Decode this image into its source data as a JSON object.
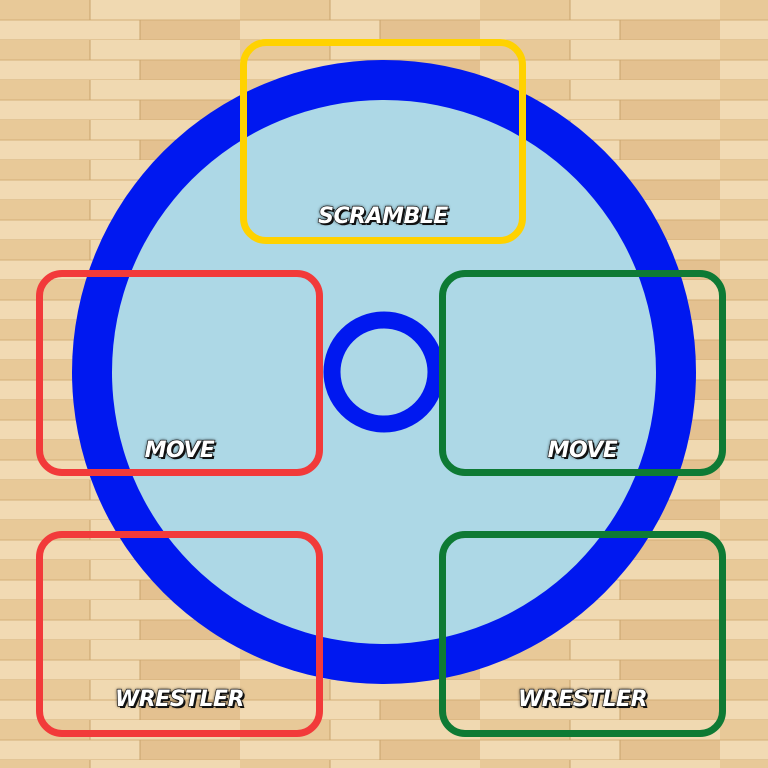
{
  "colors": {
    "mat_outer": "#0018f0",
    "mat_inner": "#add8e6",
    "scramble": "#ffd200",
    "player_left": "#f23a3a",
    "player_right": "#0e7a34",
    "wood_light": "#edd3a6",
    "wood_dark": "#d9b27c"
  },
  "zones": {
    "scramble": {
      "label": "SCRAMBLE"
    },
    "move_left": {
      "label": "MOVE"
    },
    "move_right": {
      "label": "MOVE"
    },
    "wrestler_left": {
      "label": "WRESTLER"
    },
    "wrestler_right": {
      "label": "WRESTLER"
    }
  }
}
